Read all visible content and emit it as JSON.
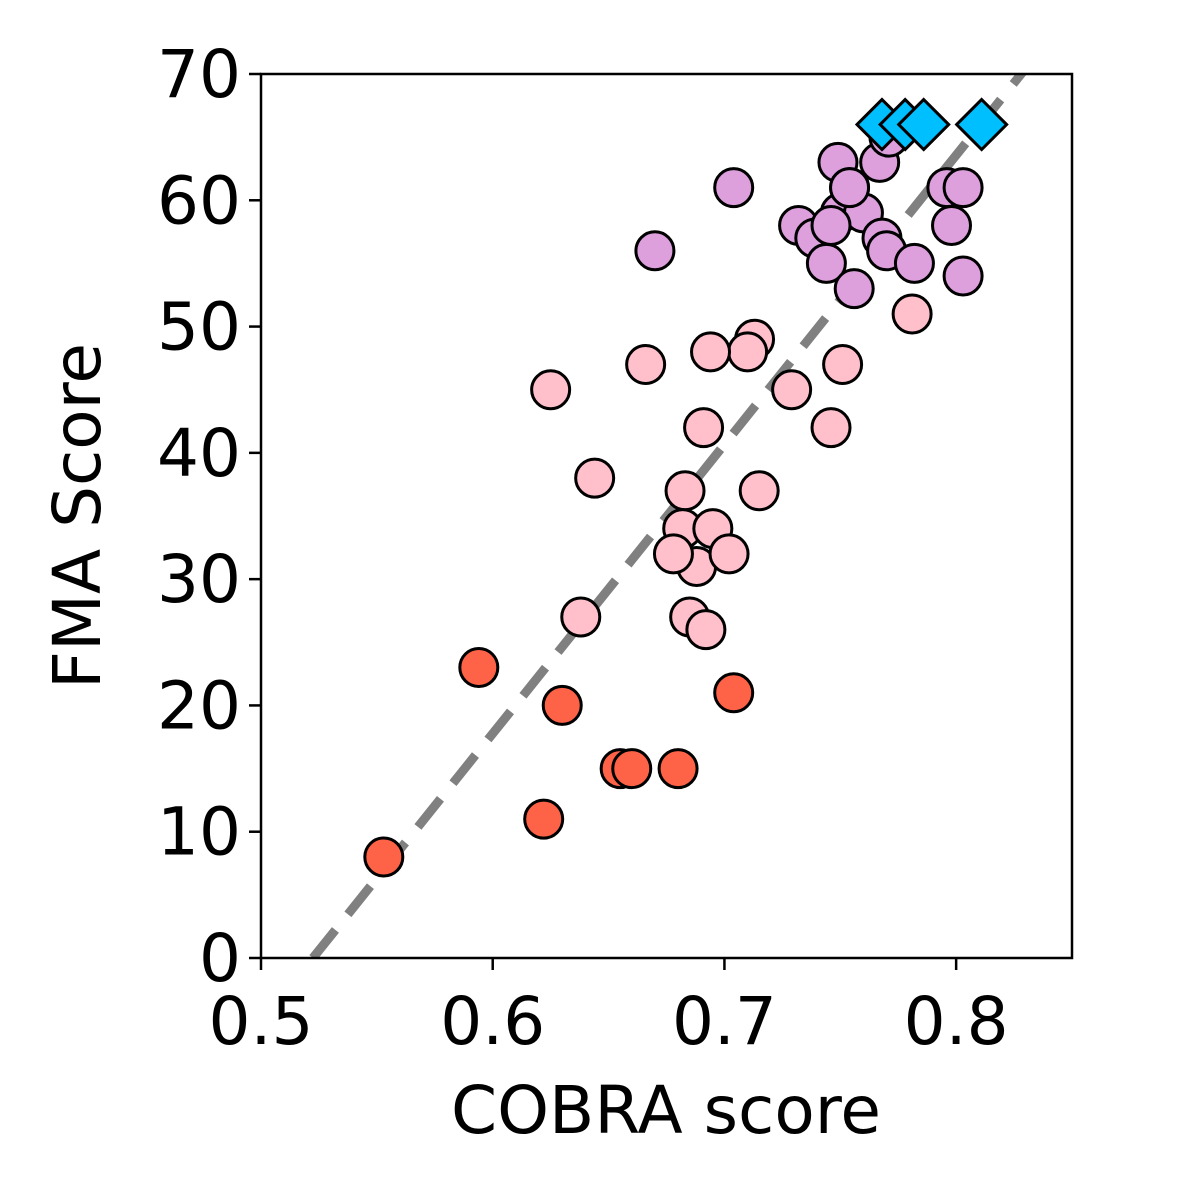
{
  "chart_data": {
    "type": "scatter",
    "xlabel": "COBRA score",
    "ylabel": "FMA Score",
    "xlim": [
      0.5,
      0.85
    ],
    "ylim": [
      0,
      70
    ],
    "xticks": [
      "0.5",
      "0.6",
      "0.7",
      "0.8"
    ],
    "xtick_values": [
      0.5,
      0.6,
      0.7,
      0.8
    ],
    "yticks": [
      "0",
      "10",
      "20",
      "30",
      "40",
      "50",
      "60",
      "70"
    ],
    "ytick_values": [
      0,
      10,
      20,
      30,
      40,
      50,
      60,
      70
    ],
    "grid": false,
    "reference_line": {
      "style": "dashed",
      "color": "#808080",
      "points": [
        [
          0.5224,
          0
        ],
        [
          0.828,
          70
        ]
      ]
    },
    "series": [
      {
        "color": "#FF6347",
        "marker": "circle",
        "points": [
          [
            0.553,
            8
          ],
          [
            0.594,
            23
          ],
          [
            0.63,
            20
          ],
          [
            0.704,
            21
          ],
          [
            0.622,
            11
          ],
          [
            0.655,
            15
          ],
          [
            0.66,
            15
          ],
          [
            0.68,
            15
          ]
        ]
      },
      {
        "color": "#FFC0CB",
        "marker": "circle",
        "points": [
          [
            0.781,
            51
          ],
          [
            0.713,
            49
          ],
          [
            0.71,
            48
          ],
          [
            0.694,
            48
          ],
          [
            0.666,
            47
          ],
          [
            0.751,
            47
          ],
          [
            0.625,
            45
          ],
          [
            0.729,
            45
          ],
          [
            0.691,
            42
          ],
          [
            0.746,
            42
          ],
          [
            0.644,
            38
          ],
          [
            0.683,
            37
          ],
          [
            0.715,
            37
          ],
          [
            0.682,
            34
          ],
          [
            0.695,
            34
          ],
          [
            0.688,
            31
          ],
          [
            0.678,
            32
          ],
          [
            0.702,
            32
          ],
          [
            0.638,
            27
          ],
          [
            0.685,
            27
          ],
          [
            0.692,
            26
          ]
        ]
      },
      {
        "color": "#DDA0DD",
        "marker": "circle",
        "points": [
          [
            0.704,
            61
          ],
          [
            0.67,
            56
          ],
          [
            0.749,
            63
          ],
          [
            0.767,
            63
          ],
          [
            0.754,
            61
          ],
          [
            0.796,
            61
          ],
          [
            0.803,
            61
          ],
          [
            0.732,
            58
          ],
          [
            0.739,
            57
          ],
          [
            0.75,
            59
          ],
          [
            0.76,
            59
          ],
          [
            0.746,
            58
          ],
          [
            0.798,
            58
          ],
          [
            0.768,
            57
          ],
          [
            0.77,
            56
          ],
          [
            0.744,
            55
          ],
          [
            0.782,
            55
          ],
          [
            0.803,
            54
          ],
          [
            0.756,
            53
          ],
          [
            0.754,
            61
          ],
          [
            0.771,
            65
          ]
        ]
      },
      {
        "color": "#00BFFF",
        "marker": "diamond",
        "points": [
          [
            0.768,
            66
          ],
          [
            0.778,
            66
          ],
          [
            0.786,
            66
          ],
          [
            0.811,
            66
          ]
        ]
      }
    ]
  }
}
